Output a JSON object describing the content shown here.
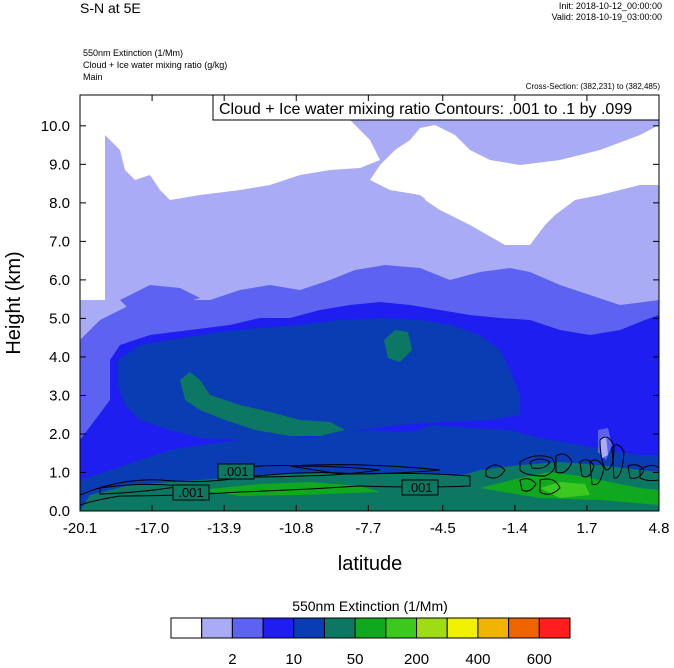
{
  "header": {
    "title": "S-N at 5E",
    "init": "Init: 2018-10-12_00:00:00",
    "valid": "Valid: 2018-10-19_03:00:00",
    "field1": "550nm Extinction   (1/Mm)",
    "field2": "Cloud + Ice water mixing ratio   (g/kg)",
    "field3": "Main",
    "cross_section": "Cross-Section: (382,231) to (382,485)"
  },
  "chart_data": {
    "type": "heatmap",
    "xlabel": "latitude",
    "ylabel": "Height (km)",
    "xlim": [
      -20.1,
      4.8
    ],
    "ylim": [
      0.0,
      10.8
    ],
    "x_ticks": [
      "-20.1",
      "-17.0",
      "-13.9",
      "-10.8",
      "-7.7",
      "-4.5",
      "-1.4",
      "1.7",
      "4.8"
    ],
    "y_ticks": [
      "0.0",
      "1.0",
      "2.0",
      "3.0",
      "4.0",
      "5.0",
      "6.0",
      "7.0",
      "8.0",
      "9.0",
      "10.0"
    ],
    "contour_info": "Cloud + Ice water mixing ratio Contours: .001 to .1 by .099",
    "contour_labels": [
      {
        "text": ".001",
        "lat": -15.4,
        "height": 0.42
      },
      {
        "text": ".001",
        "lat": -12.9,
        "height": 0.95
      },
      {
        "text": ".001",
        "lat": -5.1,
        "height": 0.6
      }
    ],
    "colorbar": {
      "title": "550nm Extinction  (1/Mm)",
      "colors": [
        "#ffffff",
        "#a9acf5",
        "#5d63f0",
        "#1e1ef0",
        "#0a3cb4",
        "#0c7864",
        "#10a81e",
        "#3cc81e",
        "#a0dc14",
        "#f0f000",
        "#f0b400",
        "#f06400",
        "#ff1e1e"
      ],
      "tick_labels": [
        "2",
        "10",
        "50",
        "200",
        "400",
        "600"
      ]
    }
  }
}
